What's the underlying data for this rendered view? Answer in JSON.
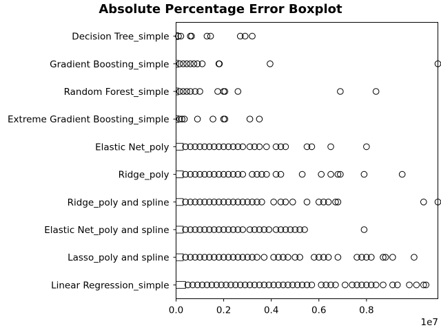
{
  "chart_data": {
    "type": "boxplot",
    "orientation": "horizontal",
    "title": "Absolute Percentage Error Boxplot",
    "xlabel": "",
    "ylabel": "",
    "x_offset_label": "1e7",
    "xlim": [
      0,
      1.1
    ],
    "xticks": [
      0.0,
      0.2,
      0.4,
      0.6,
      0.8
    ],
    "xtick_labels": [
      "0.0",
      "0.2",
      "0.4",
      "0.6",
      "0.8"
    ],
    "grid": false,
    "categories": [
      "Decision Tree_simple",
      "Gradient Boosting_simple",
      "Random Forest_simple",
      "Extreme Gradient Boosting_simple",
      "Elastic Net_poly",
      "Ridge_poly",
      "Ridge_poly and spline",
      "Elastic Net_poly and spline",
      "Lasso_poly and spline",
      "Linear Regression_simple"
    ],
    "boxes": [
      {
        "whisker_high": 0.01,
        "outliers": [
          0.01,
          0.02,
          0.06,
          0.065,
          0.13,
          0.145,
          0.27,
          0.29,
          0.32
        ]
      },
      {
        "whisker_high": 0.01,
        "outliers": [
          0.015,
          0.03,
          0.045,
          0.06,
          0.075,
          0.09,
          0.11,
          0.18,
          0.182,
          0.395,
          1.1
        ]
      },
      {
        "whisker_high": 0.01,
        "outliers": [
          0.015,
          0.03,
          0.045,
          0.06,
          0.08,
          0.1,
          0.175,
          0.2,
          0.205,
          0.26,
          0.69,
          0.84
        ]
      },
      {
        "whisker_high": 0.01,
        "outliers": [
          0.015,
          0.025,
          0.035,
          0.09,
          0.155,
          0.2,
          0.205,
          0.31,
          0.35
        ]
      },
      {
        "whisker_high": 0.03,
        "outliers": [
          0.04,
          0.06,
          0.08,
          0.1,
          0.12,
          0.14,
          0.16,
          0.18,
          0.2,
          0.22,
          0.24,
          0.26,
          0.28,
          0.31,
          0.33,
          0.35,
          0.38,
          0.42,
          0.44,
          0.46,
          0.55,
          0.57,
          0.65,
          0.8
        ]
      },
      {
        "whisker_high": 0.03,
        "outliers": [
          0.04,
          0.06,
          0.08,
          0.1,
          0.12,
          0.14,
          0.16,
          0.18,
          0.2,
          0.22,
          0.24,
          0.26,
          0.28,
          0.32,
          0.34,
          0.36,
          0.38,
          0.42,
          0.44,
          0.53,
          0.61,
          0.65,
          0.68,
          0.69,
          0.79,
          0.95
        ]
      },
      {
        "whisker_high": 0.03,
        "outliers": [
          0.04,
          0.06,
          0.08,
          0.1,
          0.12,
          0.14,
          0.16,
          0.18,
          0.2,
          0.22,
          0.24,
          0.26,
          0.28,
          0.3,
          0.32,
          0.34,
          0.36,
          0.41,
          0.44,
          0.46,
          0.49,
          0.55,
          0.6,
          0.62,
          0.64,
          0.67,
          0.68,
          1.04,
          1.1
        ]
      },
      {
        "whisker_high": 0.03,
        "outliers": [
          0.04,
          0.06,
          0.08,
          0.1,
          0.12,
          0.14,
          0.16,
          0.18,
          0.2,
          0.22,
          0.24,
          0.26,
          0.28,
          0.31,
          0.33,
          0.35,
          0.37,
          0.39,
          0.42,
          0.44,
          0.46,
          0.48,
          0.5,
          0.52,
          0.54,
          0.79
        ]
      },
      {
        "whisker_high": 0.03,
        "outliers": [
          0.04,
          0.06,
          0.08,
          0.1,
          0.12,
          0.14,
          0.16,
          0.18,
          0.2,
          0.22,
          0.24,
          0.26,
          0.28,
          0.3,
          0.32,
          0.34,
          0.37,
          0.41,
          0.43,
          0.45,
          0.47,
          0.5,
          0.52,
          0.58,
          0.6,
          0.62,
          0.64,
          0.68,
          0.76,
          0.78,
          0.8,
          0.82,
          0.87,
          0.88,
          0.91,
          1.0
        ]
      },
      {
        "whisker_high": 0.04,
        "outliers": [
          0.05,
          0.07,
          0.09,
          0.11,
          0.13,
          0.15,
          0.17,
          0.19,
          0.21,
          0.23,
          0.25,
          0.27,
          0.29,
          0.31,
          0.33,
          0.35,
          0.37,
          0.39,
          0.41,
          0.43,
          0.45,
          0.47,
          0.49,
          0.51,
          0.53,
          0.55,
          0.57,
          0.61,
          0.63,
          0.65,
          0.67,
          0.71,
          0.74,
          0.76,
          0.78,
          0.8,
          0.82,
          0.84,
          0.87,
          0.91,
          0.93,
          0.98,
          1.01,
          1.04,
          1.05
        ]
      }
    ]
  }
}
